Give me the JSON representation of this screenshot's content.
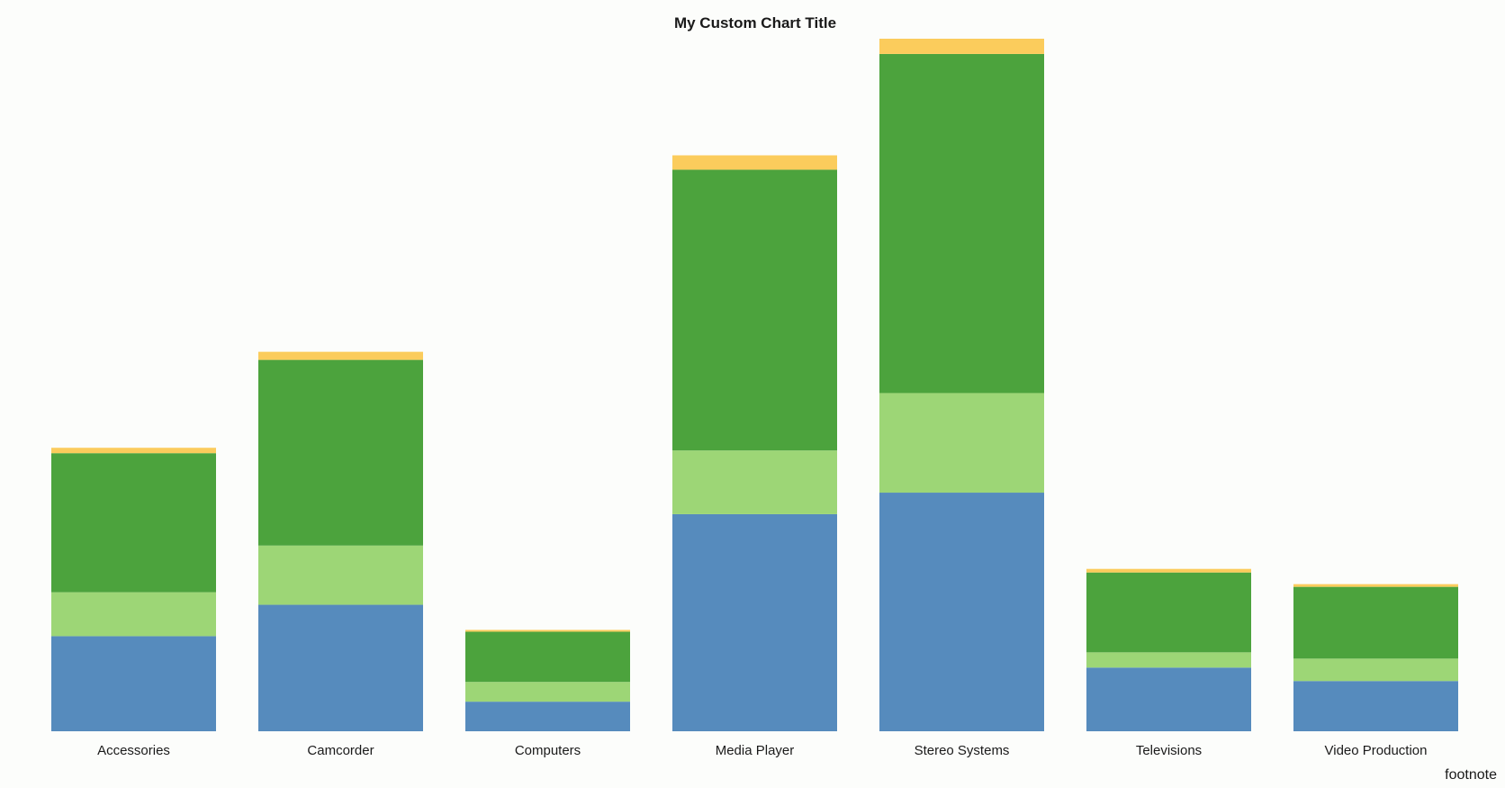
{
  "colors": {
    "background": "#fcfdfb",
    "series": [
      "#568bbd",
      "#9dd676",
      "#4ca33d",
      "#fbcc5c"
    ]
  },
  "footnote": "footnote",
  "chart_data": {
    "type": "bar",
    "stacked": true,
    "title": "My Custom Chart Title",
    "xlabel": "",
    "ylabel": "",
    "grid": false,
    "legend": "none",
    "ylim": [
      0,
      775
    ],
    "categories": [
      "Accessories",
      "Camcorder",
      "Computers",
      "Media Player",
      "Stereo Systems",
      "Televisions",
      "Video Production"
    ],
    "series": [
      {
        "values": [
          106,
          141,
          33,
          242,
          266,
          71,
          56
        ]
      },
      {
        "values": [
          49,
          66,
          22,
          71,
          111,
          17,
          25
        ]
      },
      {
        "values": [
          155,
          207,
          56,
          313,
          378,
          89,
          80
        ]
      },
      {
        "values": [
          6,
          9,
          2,
          16,
          17,
          4,
          3
        ]
      }
    ]
  }
}
